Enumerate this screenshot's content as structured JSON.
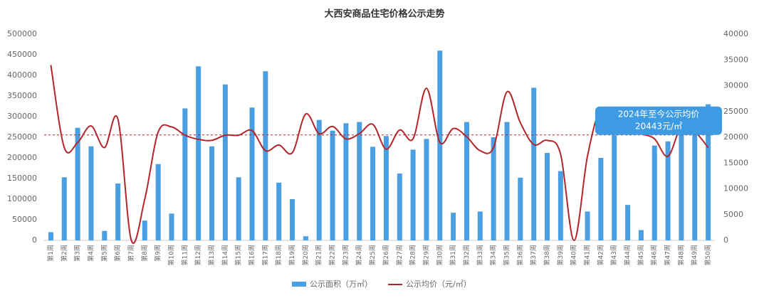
{
  "chart_data": {
    "type": "bar_line",
    "title": "大西安商品住宅价格公示走势",
    "categories": [
      "第1周",
      "第2周",
      "第3周",
      "第4周",
      "第5周",
      "第6周",
      "第7周",
      "第8周",
      "第9周",
      "第10周",
      "第11周",
      "第12周",
      "第13周",
      "第14周",
      "第15周",
      "第16周",
      "第17周",
      "第18周",
      "第19周",
      "第20周",
      "第21周",
      "第22周",
      "第23周",
      "第24周",
      "第25周",
      "第26周",
      "第27周",
      "第28周",
      "第29周",
      "第30周",
      "第31周",
      "第32周",
      "第33周",
      "第34周",
      "第35周",
      "第36周",
      "第37周",
      "第38周",
      "第39周",
      "第40周",
      "第41周",
      "第42周",
      "第43周",
      "第44周",
      "第45周",
      "第46周",
      "第47周",
      "第48周",
      "第49周",
      "第50周"
    ],
    "series": [
      {
        "name": "公示面积（万㎡）",
        "type": "bar",
        "color": "#4a9fe3",
        "values": [
          20000,
          153000,
          273000,
          228000,
          23000,
          138000,
          0,
          48000,
          185000,
          65000,
          320000,
          422000,
          228000,
          378000,
          153000,
          322000,
          410000,
          140000,
          100000,
          10000,
          292000,
          266000,
          284000,
          287000,
          227000,
          253000,
          162000,
          220000,
          246000,
          460000,
          67000,
          287000,
          70000,
          250000,
          287000,
          152000,
          370000,
          212000,
          168000,
          0,
          70000,
          200000,
          255000,
          86000,
          25000,
          230000,
          240000,
          272000,
          312000,
          330000
        ]
      },
      {
        "name": "公示均价（元/㎡）",
        "type": "line",
        "axis": "y2",
        "color": "#b3262b",
        "values": [
          34000,
          18000,
          19000,
          22200,
          18000,
          23500,
          0,
          8000,
          21000,
          22000,
          20400,
          19600,
          19400,
          20400,
          20400,
          21300,
          17400,
          18500,
          17000,
          24500,
          20700,
          22100,
          19700,
          20700,
          22500,
          17700,
          21400,
          19700,
          29500,
          19000,
          21700,
          20100,
          17400,
          18000,
          28800,
          22800,
          18600,
          19400,
          16700,
          0,
          16300,
          25500,
          22500,
          22000,
          20700,
          19700,
          16300,
          22100,
          21100,
          18000
        ]
      }
    ],
    "average": {
      "value": 20443,
      "label": [
        "2024年至今公示均价",
        "20443元/㎡"
      ]
    },
    "ylim": [
      0,
      500000
    ],
    "yticks": [
      0,
      50000,
      100000,
      150000,
      200000,
      250000,
      300000,
      350000,
      400000,
      450000,
      500000
    ],
    "y2lim": [
      0,
      40000
    ],
    "y2ticks": [
      0,
      5000,
      10000,
      15000,
      20000,
      25000,
      30000,
      35000,
      40000
    ],
    "grid": false
  }
}
